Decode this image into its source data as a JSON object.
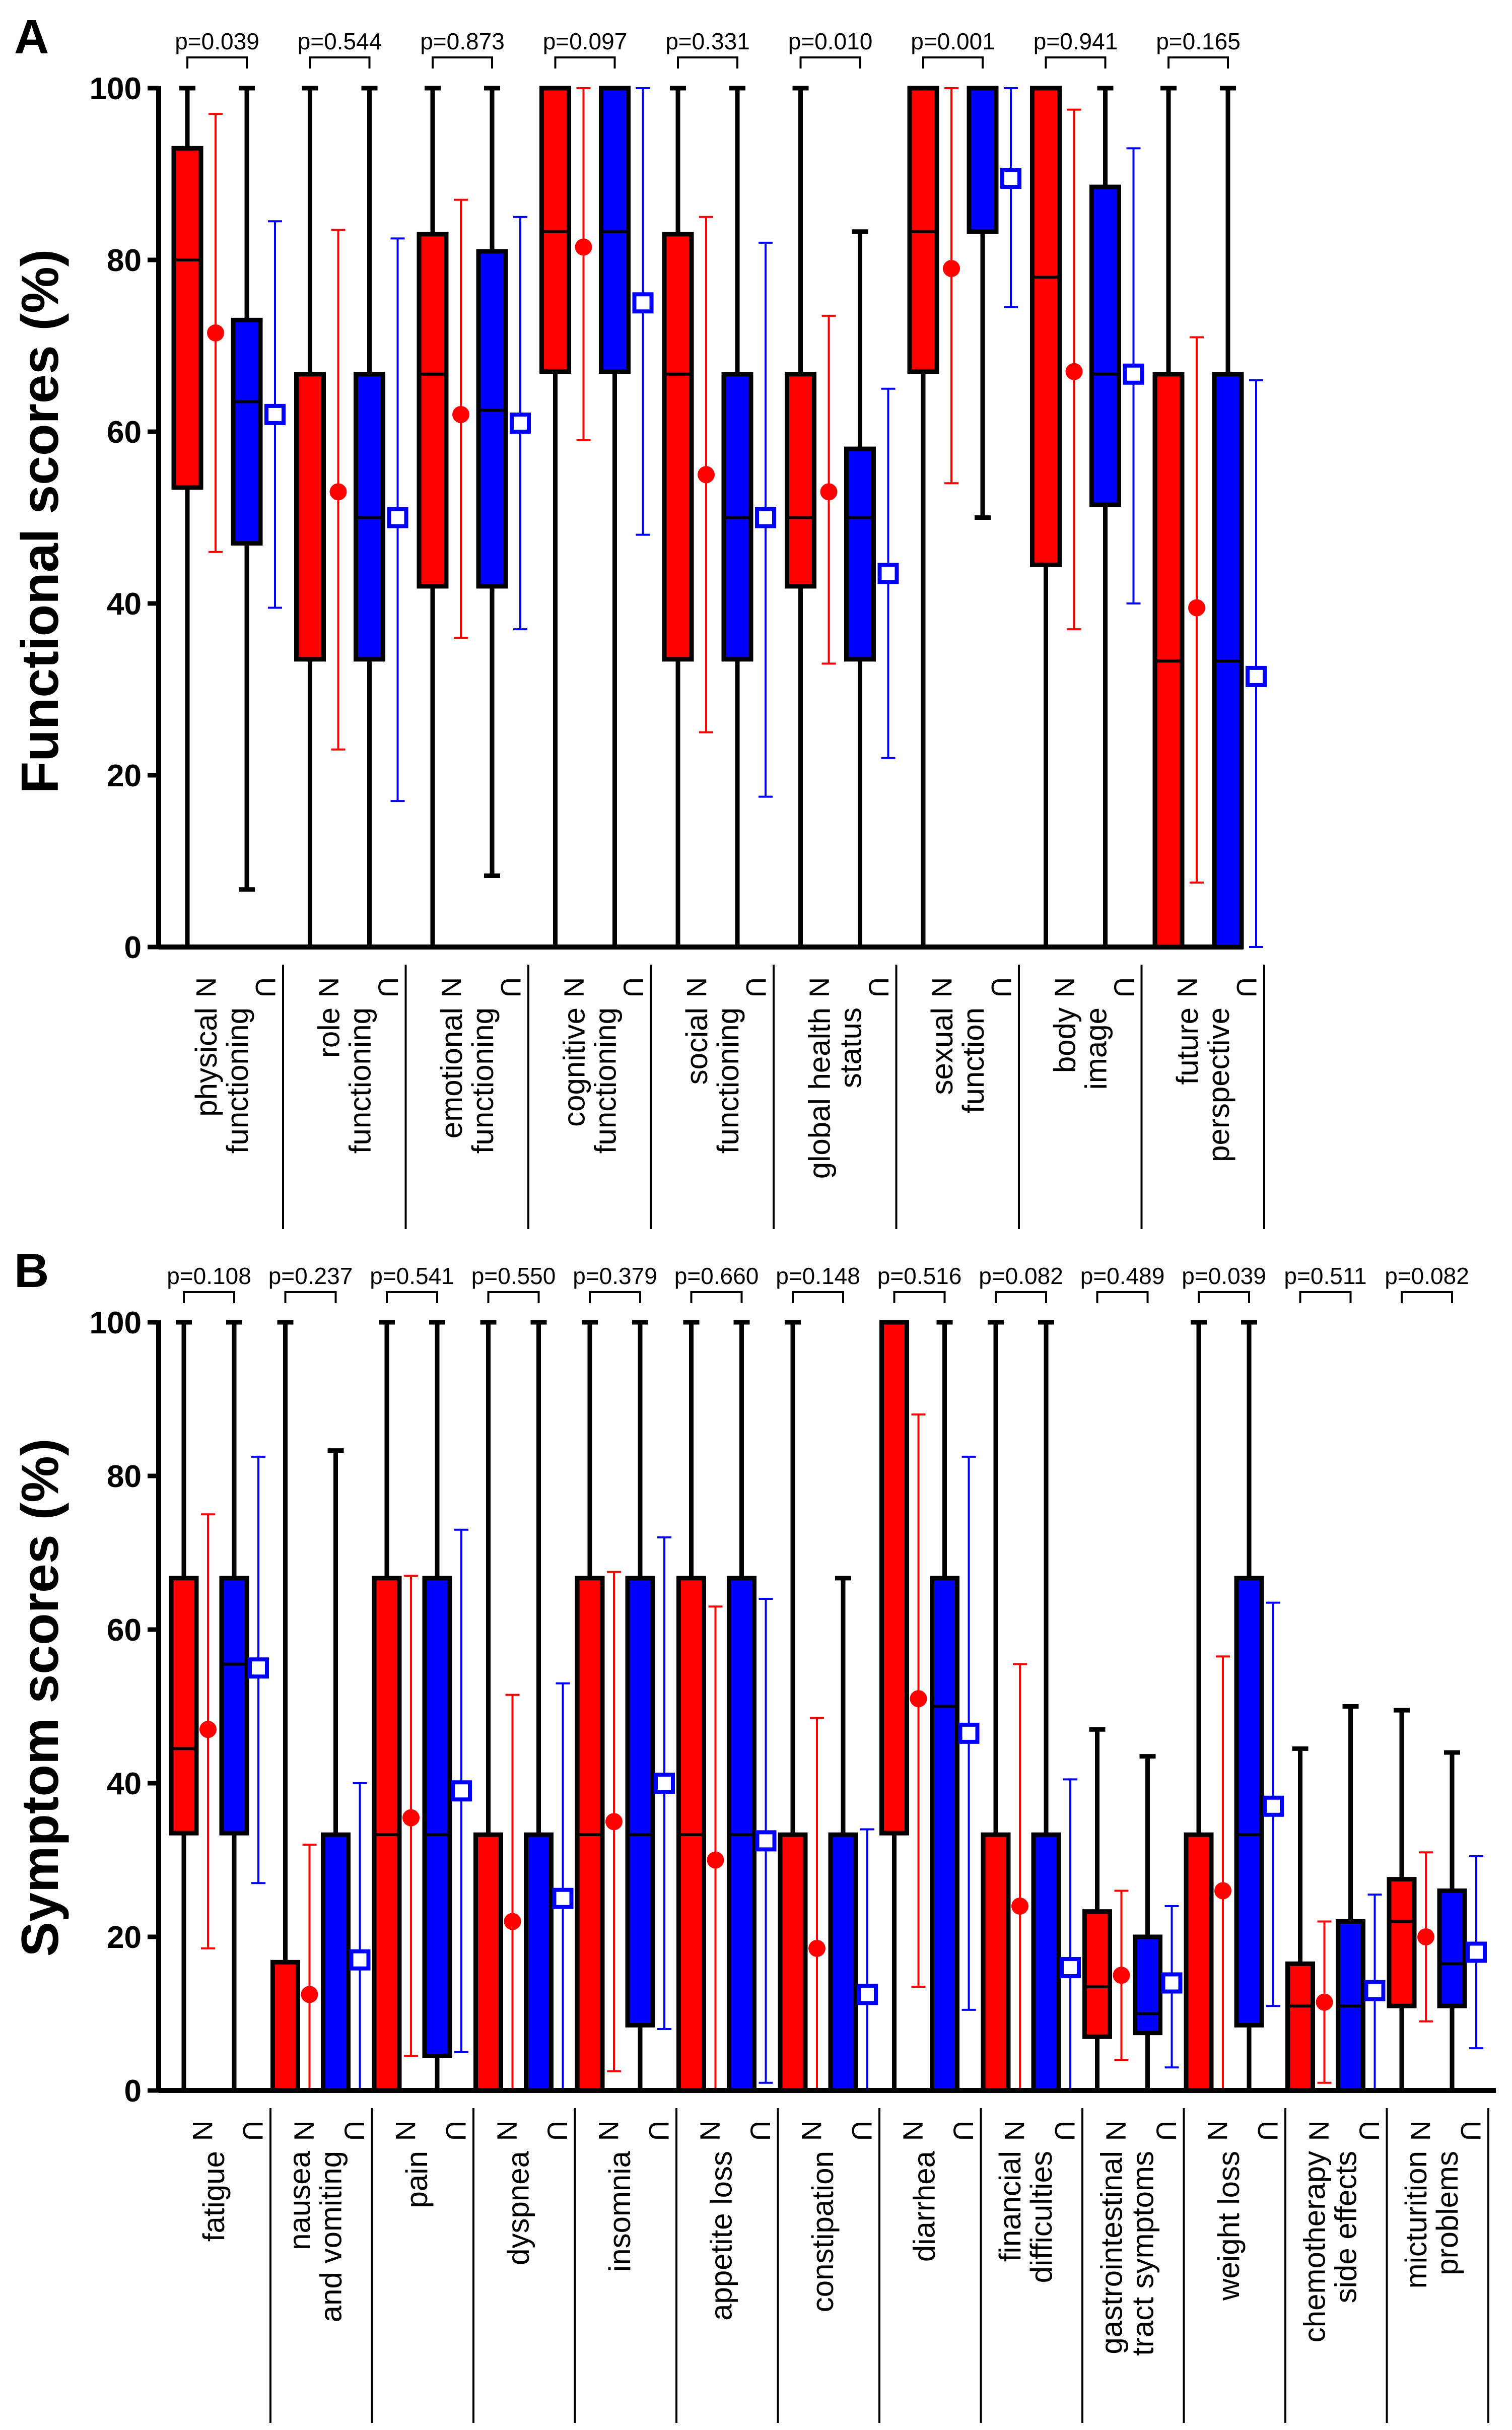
{
  "chart_data": [
    {
      "panel": "A",
      "type": "box",
      "ylabel": "Functional scores (%)",
      "ylim": [
        0,
        100
      ],
      "yticks": [
        0,
        20,
        40,
        60,
        80,
        100
      ],
      "colors": {
        "N": "#ff0000",
        "U": "#0000ff",
        "whisker": "#000000"
      },
      "groups": [
        {
          "label": [
            "physical",
            "functioning"
          ],
          "p": "p=0.039",
          "N": {
            "label": "N",
            "min": 0,
            "q1": 53.5,
            "median": 80,
            "q3": 93,
            "max": 100,
            "mean": 71.5,
            "sd_low": 46,
            "sd_high": 97
          },
          "U": {
            "label": "U",
            "min": 6.7,
            "q1": 47,
            "median": 63.5,
            "q3": 73,
            "max": 100,
            "mean": 62,
            "sd_low": 39.5,
            "sd_high": 84.5
          }
        },
        {
          "label": [
            "role",
            "functioning"
          ],
          "p": "p=0.544",
          "N": {
            "label": "N",
            "min": 0,
            "q1": 33.5,
            "median": 33.5,
            "q3": 66.7,
            "max": 100,
            "mean": 53,
            "sd_low": 23,
            "sd_high": 83.5
          },
          "U": {
            "label": "U",
            "min": 0,
            "q1": 33.5,
            "median": 50,
            "q3": 66.7,
            "max": 100,
            "mean": 50,
            "sd_low": 17,
            "sd_high": 82.5
          }
        },
        {
          "label": [
            "emotional",
            "functioning"
          ],
          "p": "p=0.873",
          "N": {
            "label": "N",
            "min": 0,
            "q1": 42,
            "median": 66.7,
            "q3": 83,
            "max": 100,
            "mean": 62,
            "sd_low": 36,
            "sd_high": 87
          },
          "U": {
            "label": "U",
            "min": 8.3,
            "q1": 42,
            "median": 62.5,
            "q3": 81,
            "max": 100,
            "mean": 61,
            "sd_low": 37,
            "sd_high": 85
          }
        },
        {
          "label": [
            "cognitive",
            "functioning"
          ],
          "p": "p=0.097",
          "N": {
            "label": "N",
            "min": 0,
            "q1": 67,
            "median": 83.3,
            "q3": 100,
            "max": 100,
            "mean": 81.5,
            "sd_low": 59,
            "sd_high": 100
          },
          "U": {
            "label": "U",
            "min": 0,
            "q1": 67,
            "median": 83.3,
            "q3": 100,
            "max": 100,
            "mean": 75,
            "sd_low": 48,
            "sd_high": 100
          }
        },
        {
          "label": [
            "social",
            "functioning"
          ],
          "p": "p=0.331",
          "N": {
            "label": "N",
            "min": 0,
            "q1": 33.5,
            "median": 66.7,
            "q3": 83,
            "max": 100,
            "mean": 55,
            "sd_low": 25,
            "sd_high": 85
          },
          "U": {
            "label": "U",
            "min": 0,
            "q1": 33.5,
            "median": 50,
            "q3": 66.7,
            "max": 100,
            "mean": 50,
            "sd_low": 17.5,
            "sd_high": 82
          }
        },
        {
          "label": [
            "global health",
            "status"
          ],
          "p": "p=0.010",
          "N": {
            "label": "N",
            "min": 0,
            "q1": 42,
            "median": 50,
            "q3": 66.7,
            "max": 100,
            "mean": 53,
            "sd_low": 33,
            "sd_high": 73.5
          },
          "U": {
            "label": "U",
            "min": 0,
            "q1": 33.5,
            "median": 50,
            "q3": 58,
            "max": 83.3,
            "mean": 43.5,
            "sd_low": 22,
            "sd_high": 65
          }
        },
        {
          "label": [
            "sexual",
            "function"
          ],
          "p": "p=0.001",
          "N": {
            "label": "N",
            "min": 0,
            "q1": 67,
            "median": 83.3,
            "q3": 100,
            "max": 100,
            "mean": 79,
            "sd_low": 54,
            "sd_high": 100
          },
          "U": {
            "label": "U",
            "min": 50,
            "q1": 83.3,
            "median": 100,
            "q3": 100,
            "max": 100,
            "mean": 89.5,
            "sd_low": 74.5,
            "sd_high": 100
          }
        },
        {
          "label": [
            "body",
            "image"
          ],
          "p": "p=0.941",
          "N": {
            "label": "N",
            "min": 0,
            "q1": 44.5,
            "median": 78,
            "q3": 100,
            "max": 100,
            "mean": 67,
            "sd_low": 37,
            "sd_high": 97.5
          },
          "U": {
            "label": "U",
            "min": 0,
            "q1": 51.5,
            "median": 66.7,
            "q3": 88.5,
            "max": 100,
            "mean": 66.7,
            "sd_low": 40,
            "sd_high": 93
          }
        },
        {
          "label": [
            "future",
            "perspective"
          ],
          "p": "p=0.165",
          "N": {
            "label": "N",
            "min": 0,
            "q1": 0,
            "median": 33.3,
            "q3": 66.7,
            "max": 100,
            "mean": 39.5,
            "sd_low": 7.5,
            "sd_high": 71
          },
          "U": {
            "label": "U",
            "min": 0,
            "q1": 0,
            "median": 33.3,
            "q3": 66.7,
            "max": 100,
            "mean": 31.5,
            "sd_low": 0,
            "sd_high": 66
          }
        }
      ]
    },
    {
      "panel": "B",
      "type": "box",
      "ylabel": "Symptom scores (%)",
      "ylim": [
        0,
        100
      ],
      "yticks": [
        0,
        20,
        40,
        60,
        80,
        100
      ],
      "colors": {
        "N": "#ff0000",
        "U": "#0000ff",
        "whisker": "#000000"
      },
      "groups": [
        {
          "label": [
            "fatigue"
          ],
          "p": "p=0.108",
          "N": {
            "label": "N",
            "min": 0,
            "q1": 33.5,
            "median": 44.5,
            "q3": 66.7,
            "max": 100,
            "mean": 47,
            "sd_low": 18.5,
            "sd_high": 75
          },
          "U": {
            "label": "U",
            "min": 0,
            "q1": 33.5,
            "median": 55.5,
            "q3": 66.7,
            "max": 100,
            "mean": 55,
            "sd_low": 27,
            "sd_high": 82.5
          }
        },
        {
          "label": [
            "nausea",
            "and vomiting"
          ],
          "p": "p=0.237",
          "N": {
            "label": "N",
            "min": 0,
            "q1": 0,
            "median": 0,
            "q3": 16.7,
            "max": 100,
            "mean": 12.5,
            "sd_low": 0,
            "sd_high": 32
          },
          "U": {
            "label": "U",
            "min": 0,
            "q1": 0,
            "median": 0,
            "q3": 33.3,
            "max": 83.3,
            "mean": 17,
            "sd_low": 0,
            "sd_high": 40
          }
        },
        {
          "label": [
            "pain"
          ],
          "p": "p=0.541",
          "N": {
            "label": "N",
            "min": 0,
            "q1": 0,
            "median": 33.3,
            "q3": 66.7,
            "max": 100,
            "mean": 35.5,
            "sd_low": 4.5,
            "sd_high": 67
          },
          "U": {
            "label": "U",
            "min": 0,
            "q1": 4.5,
            "median": 33.3,
            "q3": 66.7,
            "max": 100,
            "mean": 39,
            "sd_low": 5,
            "sd_high": 73
          }
        },
        {
          "label": [
            "dyspnea"
          ],
          "p": "p=0.550",
          "N": {
            "label": "N",
            "min": 0,
            "q1": 0,
            "median": 0,
            "q3": 33.3,
            "max": 100,
            "mean": 22,
            "sd_low": 0,
            "sd_high": 51.5
          },
          "U": {
            "label": "U",
            "min": 0,
            "q1": 0,
            "median": 0,
            "q3": 33.3,
            "max": 100,
            "mean": 25,
            "sd_low": 0,
            "sd_high": 53
          }
        },
        {
          "label": [
            "insomnia"
          ],
          "p": "p=0.379",
          "N": {
            "label": "N",
            "min": 0,
            "q1": 0,
            "median": 33.3,
            "q3": 66.7,
            "max": 100,
            "mean": 35,
            "sd_low": 2.5,
            "sd_high": 67.5
          },
          "U": {
            "label": "U",
            "min": 0,
            "q1": 8.5,
            "median": 33.3,
            "q3": 66.7,
            "max": 100,
            "mean": 40,
            "sd_low": 8,
            "sd_high": 72
          }
        },
        {
          "label": [
            "appetite loss"
          ],
          "p": "p=0.660",
          "N": {
            "label": "N",
            "min": 0,
            "q1": 0,
            "median": 33.3,
            "q3": 66.7,
            "max": 100,
            "mean": 30,
            "sd_low": 0,
            "sd_high": 63
          },
          "U": {
            "label": "U",
            "min": 0,
            "q1": 0,
            "median": 33.3,
            "q3": 66.7,
            "max": 100,
            "mean": 32.5,
            "sd_low": 1,
            "sd_high": 64
          }
        },
        {
          "label": [
            "constipation"
          ],
          "p": "p=0.148",
          "N": {
            "label": "N",
            "min": 0,
            "q1": 0,
            "median": 0,
            "q3": 33.3,
            "max": 100,
            "mean": 18.5,
            "sd_low": 0,
            "sd_high": 48.5
          },
          "U": {
            "label": "U",
            "min": 0,
            "q1": 0,
            "median": 0,
            "q3": 33.3,
            "max": 66.7,
            "mean": 12.5,
            "sd_low": 0,
            "sd_high": 34
          }
        },
        {
          "label": [
            "diarrhea"
          ],
          "p": "p=0.516",
          "N": {
            "label": "N",
            "min": 0,
            "q1": 33.5,
            "median": 100,
            "q3": 100,
            "max": 100,
            "mean": 51,
            "sd_low": 13.5,
            "sd_high": 88
          },
          "U": {
            "label": "U",
            "min": 0,
            "q1": 0,
            "median": 50,
            "q3": 66.7,
            "max": 100,
            "mean": 46.5,
            "sd_low": 10.5,
            "sd_high": 82.5
          }
        },
        {
          "label": [
            "financial",
            "difficulties"
          ],
          "p": "p=0.082",
          "N": {
            "label": "N",
            "min": 0,
            "q1": 0,
            "median": 0,
            "q3": 33.3,
            "max": 100,
            "mean": 24,
            "sd_low": 0,
            "sd_high": 55.5
          },
          "U": {
            "label": "U",
            "min": 0,
            "q1": 0,
            "median": 0,
            "q3": 33.3,
            "max": 100,
            "mean": 16,
            "sd_low": 0,
            "sd_high": 40.5
          }
        },
        {
          "label": [
            "gastrointestinal",
            "tract symptoms"
          ],
          "p": "p=0.489",
          "N": {
            "label": "N",
            "min": 0,
            "q1": 7,
            "median": 13.5,
            "q3": 23.3,
            "max": 47,
            "mean": 15,
            "sd_low": 4,
            "sd_high": 26
          },
          "U": {
            "label": "U",
            "min": 0,
            "q1": 7.5,
            "median": 10,
            "q3": 20,
            "max": 43.5,
            "mean": 14,
            "sd_low": 3,
            "sd_high": 24
          }
        },
        {
          "label": [
            "weight loss"
          ],
          "p": "p=0.039",
          "N": {
            "label": "N",
            "min": 0,
            "q1": 0,
            "median": 0,
            "q3": 33.3,
            "max": 100,
            "mean": 26,
            "sd_low": 0,
            "sd_high": 56.5
          },
          "U": {
            "label": "U",
            "min": 0,
            "q1": 8.5,
            "median": 33.3,
            "q3": 66.7,
            "max": 100,
            "mean": 37,
            "sd_low": 11,
            "sd_high": 63.5
          }
        },
        {
          "label": [
            "chemotherapy",
            "side effects"
          ],
          "p": "p=0.511",
          "N": {
            "label": "N",
            "min": 0,
            "q1": 0,
            "median": 11,
            "q3": 16.5,
            "max": 44.5,
            "mean": 11.5,
            "sd_low": 1,
            "sd_high": 22
          },
          "U": {
            "label": "U",
            "min": 0,
            "q1": 0,
            "median": 11,
            "q3": 22,
            "max": 50,
            "mean": 13,
            "sd_low": 0,
            "sd_high": 25.5
          }
        },
        {
          "label": [
            "micturition",
            "problems"
          ],
          "p": "p=0.082",
          "N": {
            "label": "N",
            "min": 0,
            "q1": 11,
            "median": 22,
            "q3": 27.5,
            "max": 49.5,
            "mean": 20,
            "sd_low": 9,
            "sd_high": 31
          },
          "U": {
            "label": "U",
            "min": 0,
            "q1": 11,
            "median": 16.5,
            "q3": 26,
            "max": 44,
            "mean": 18,
            "sd_low": 5.5,
            "sd_high": 30.5
          }
        }
      ]
    }
  ]
}
